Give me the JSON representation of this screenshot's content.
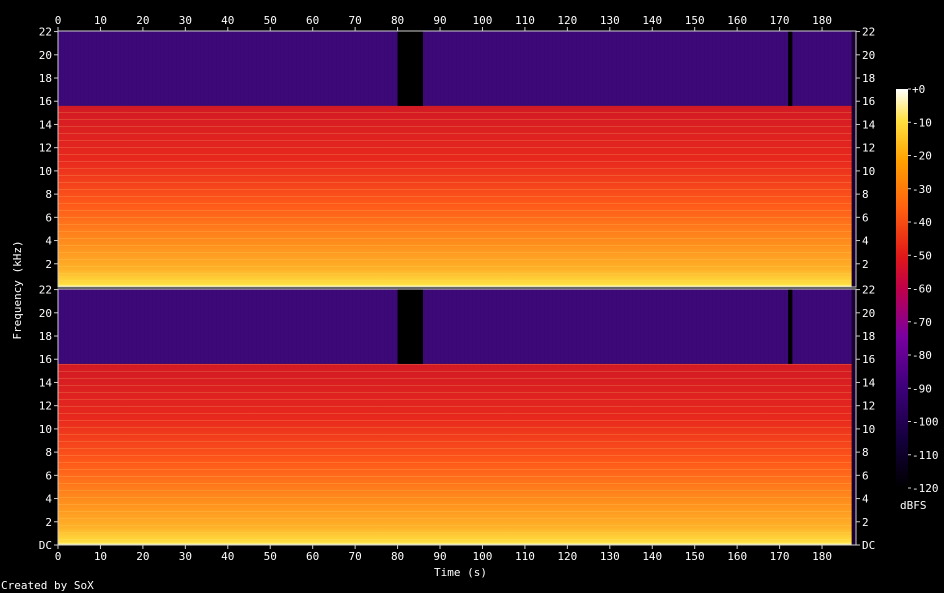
{
  "app": "SoX",
  "chart_data": {
    "type": "heatmap",
    "description": "Spectrogram, two channels stacked",
    "channels": 2,
    "xlabel": "Time (s)",
    "ylabel": "Frequency (kHz)",
    "x_ticks": [
      0,
      10,
      20,
      30,
      40,
      50,
      60,
      70,
      80,
      90,
      100,
      110,
      120,
      130,
      140,
      150,
      160,
      170,
      180
    ],
    "xlim": [
      0,
      188
    ],
    "audio_end_s": 187,
    "y_ticks_channel_top": [
      "2",
      "4",
      "6",
      "8",
      "10",
      "12",
      "14",
      "16",
      "18",
      "20",
      "22"
    ],
    "y_ticks_channel_bottom": [
      "DC",
      "2",
      "4",
      "6",
      "8",
      "10",
      "12",
      "14",
      "16",
      "18",
      "20",
      "22"
    ],
    "ylim_khz": [
      0,
      22.05
    ],
    "lowpass_cutoff_khz": 15.6,
    "colorbar": {
      "label": "dBFS",
      "ticks": [
        "+0",
        "-10",
        "-20",
        "-30",
        "-40",
        "-50",
        "-60",
        "-70",
        "-80",
        "-90",
        "-100",
        "-110",
        "-120"
      ],
      "range_dbfs": [
        -120,
        0
      ]
    },
    "quiet_sections_s": [
      [
        80,
        86
      ],
      [
        172,
        173
      ]
    ],
    "footer": "Created by SoX"
  }
}
